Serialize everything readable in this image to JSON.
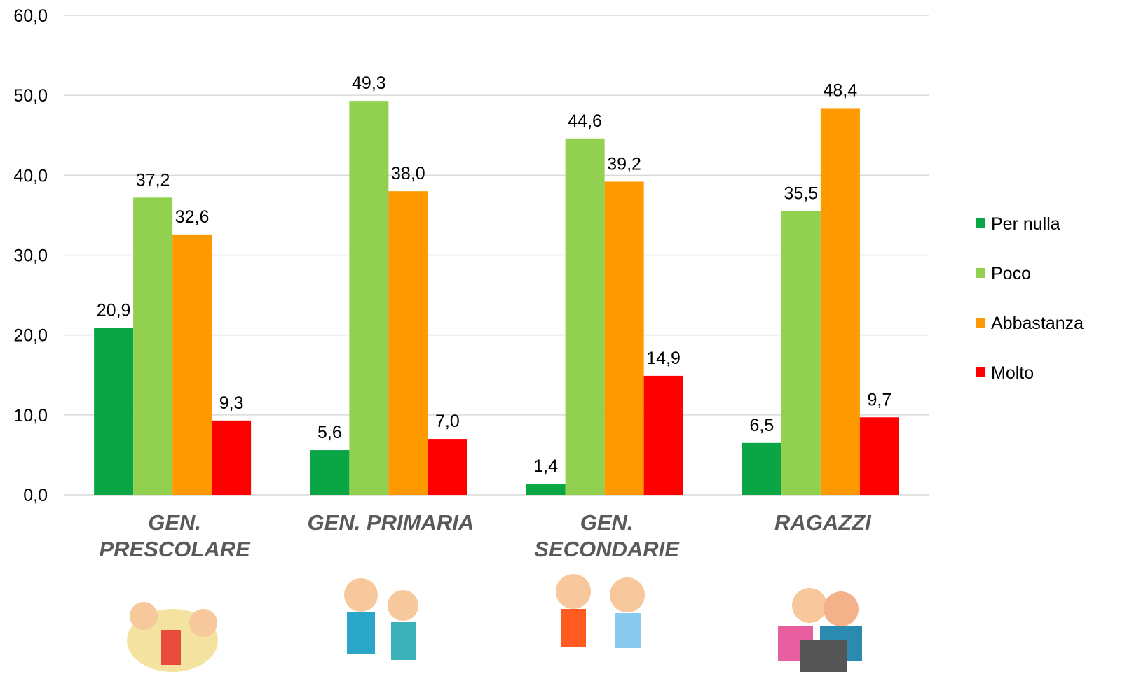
{
  "chart_data": {
    "type": "bar",
    "categories": [
      "GEN. PRESCOLARE",
      "GEN. PRIMARIA",
      "GEN. SECONDARIE",
      "RAGAZZI"
    ],
    "series": [
      {
        "name": "Per nulla",
        "color": "#0aa544",
        "values": [
          20.9,
          5.6,
          1.4,
          6.5
        ],
        "value_labels": [
          "20,9",
          "5,6",
          "1,4",
          "6,5"
        ]
      },
      {
        "name": "Poco",
        "color": "#92d050",
        "values": [
          37.2,
          49.3,
          44.6,
          35.5
        ],
        "value_labels": [
          "37,2",
          "49,3",
          "44,6",
          "35,5"
        ]
      },
      {
        "name": "Abbastanza",
        "color": "#ff9900",
        "values": [
          32.6,
          38.0,
          39.2,
          48.4
        ],
        "value_labels": [
          "32,6",
          "38,0",
          "39,2",
          "48,4"
        ]
      },
      {
        "name": "Molto",
        "color": "#ff0000",
        "values": [
          9.3,
          7.0,
          14.9,
          9.7
        ],
        "value_labels": [
          "9,3",
          "7,0",
          "14,9",
          "9,7"
        ]
      }
    ],
    "ylim": [
      0,
      60
    ],
    "yticks": [
      {
        "value": 0,
        "label": "0,0"
      },
      {
        "value": 10,
        "label": "10,0"
      },
      {
        "value": 20,
        "label": "20,0"
      },
      {
        "value": 30,
        "label": "30,0"
      },
      {
        "value": 40,
        "label": "40,0"
      },
      {
        "value": 50,
        "label": "50,0"
      },
      {
        "value": 60,
        "label": "60,0"
      }
    ],
    "grid": true,
    "legend": "right"
  }
}
